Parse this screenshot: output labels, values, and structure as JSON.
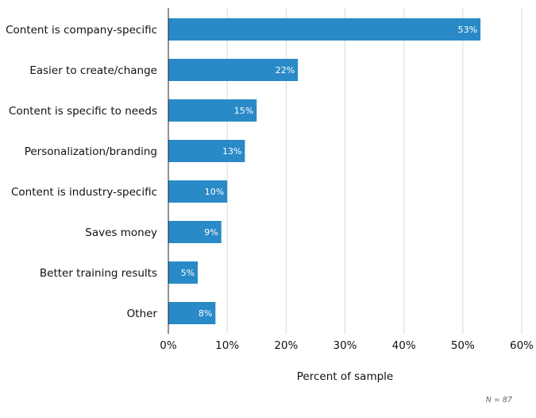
{
  "chart_data": {
    "type": "bar",
    "orientation": "horizontal",
    "categories": [
      "Content is company-specific",
      "Easier to create/change",
      "Content is specific to needs",
      "Personalization/branding",
      "Content is industry-specific",
      "Saves money",
      "Better training results",
      "Other"
    ],
    "values": [
      53,
      22,
      15,
      13,
      10,
      9,
      5,
      8
    ],
    "data_labels": [
      "53%",
      "22%",
      "15%",
      "13%",
      "10%",
      "9%",
      "5%",
      "8%"
    ],
    "xlim": [
      0,
      60
    ],
    "x_ticks": [
      0,
      10,
      20,
      30,
      40,
      50,
      60
    ],
    "x_tick_labels": [
      "0%",
      "10%",
      "20%",
      "30%",
      "40%",
      "50%",
      "60%"
    ],
    "xlabel": "Percent of sample",
    "ylabel": "",
    "title": "",
    "grid": "vertical",
    "bar_color": "#2a8ac8",
    "note": "N = 87"
  }
}
